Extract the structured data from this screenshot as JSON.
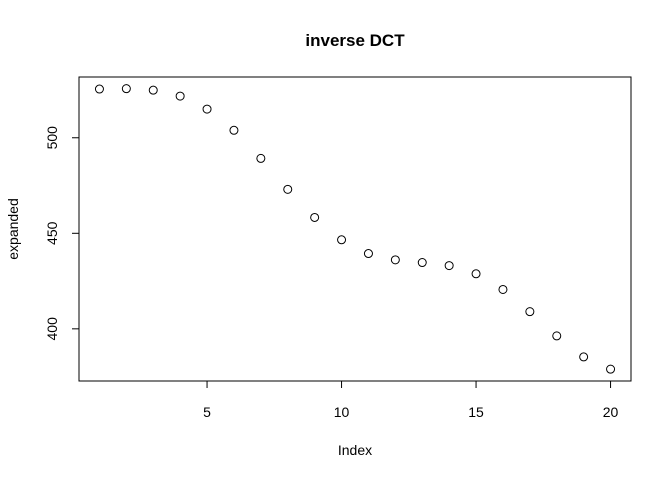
{
  "chart_data": {
    "type": "scatter",
    "title": "inverse DCT",
    "xlabel": "Index",
    "ylabel": "expanded",
    "xlim": [
      0.24,
      20.76
    ],
    "ylim": [
      372.7,
      531.8
    ],
    "xticks": [
      5,
      10,
      15,
      20
    ],
    "yticks": [
      400,
      450,
      500
    ],
    "grid": false,
    "legend": "none",
    "x": [
      1,
      2,
      3,
      4,
      5,
      6,
      7,
      8,
      9,
      10,
      11,
      12,
      13,
      14,
      15,
      16,
      17,
      18,
      19,
      20
    ],
    "y": [
      525.5,
      525.7,
      524.9,
      521.8,
      515.0,
      503.9,
      489.2,
      473.0,
      458.3,
      446.6,
      439.4,
      436.1,
      434.7,
      433.1,
      428.8,
      420.6,
      409.0,
      396.3,
      385.3,
      378.9
    ]
  }
}
